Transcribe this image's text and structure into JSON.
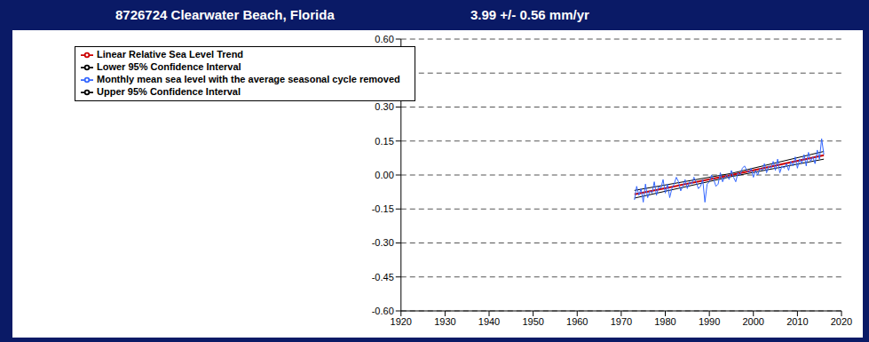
{
  "chart_data": {
    "type": "line",
    "title": "8726724 Clearwater Beach, Florida",
    "subtitle": "3.99 +/- 0.56 mm/yr",
    "xlim": [
      1920,
      2020
    ],
    "xticks": [
      1920,
      1930,
      1940,
      1950,
      1960,
      1970,
      1980,
      1990,
      2000,
      2010,
      2020
    ],
    "ylim": [
      -0.6,
      0.6
    ],
    "yticks": [
      {
        "value": -0.6,
        "label": "-0.60"
      },
      {
        "value": -0.45,
        "label": "-0.45"
      },
      {
        "value": -0.3,
        "label": "-0.30"
      },
      {
        "value": -0.15,
        "label": "-0.15"
      },
      {
        "value": 0,
        "label": "0.00"
      },
      {
        "value": 0.15,
        "label": "0.15"
      },
      {
        "value": 0.3,
        "label": "0.30"
      },
      {
        "value": 0.45,
        "label": "0.45"
      },
      {
        "value": 0.6,
        "label": "0.60"
      }
    ],
    "grid": true,
    "legend": "upper left",
    "series": [
      {
        "name": "Linear Relative Sea Level Trend",
        "color": "#cc0000",
        "line_style": "solid",
        "marker": "none",
        "x": [
          1973,
          1995,
          2016
        ],
        "values": [
          -0.085,
          0.0,
          0.087
        ]
      },
      {
        "name": "Upper 95% Confidence Interval",
        "color": "#000000",
        "line_style": "solid",
        "marker": "none",
        "x": [
          1973,
          1995,
          2016
        ],
        "values": [
          -0.068,
          0.007,
          0.104
        ]
      },
      {
        "name": "Lower 95% Confidence Interval",
        "color": "#000000",
        "line_style": "solid",
        "marker": "none",
        "x": [
          1973,
          1995,
          2016
        ],
        "values": [
          -0.102,
          -0.007,
          0.07
        ]
      },
      {
        "name": "Monthly mean sea level with the average seasonal cycle removed",
        "color": "#3366ff",
        "line_style": "solid",
        "marker": "none",
        "x": [
          1973,
          1973.5,
          1974,
          1974.5,
          1975,
          1975.5,
          1976,
          1976.5,
          1977,
          1977.5,
          1978,
          1978.5,
          1979,
          1979.5,
          1980,
          1980.5,
          1981,
          1981.5,
          1982,
          1982.5,
          1983,
          1983.5,
          1984,
          1984.5,
          1985,
          1985.5,
          1986,
          1986.5,
          1987,
          1987.5,
          1988,
          1988.5,
          1989,
          1989.5,
          1990,
          1990.5,
          1991,
          1991.5,
          1992,
          1992.5,
          1993,
          1993.5,
          1994,
          1994.5,
          1995,
          1995.5,
          1996,
          1996.5,
          1997,
          1997.5,
          1998,
          1998.5,
          1999,
          1999.5,
          2000,
          2000.5,
          2001,
          2001.5,
          2002,
          2002.5,
          2003,
          2003.5,
          2004,
          2004.5,
          2005,
          2005.5,
          2006,
          2006.5,
          2007,
          2007.5,
          2008,
          2008.5,
          2009,
          2009.5,
          2010,
          2010.5,
          2011,
          2011.5,
          2012,
          2012.5,
          2013,
          2013.5,
          2014,
          2014.5,
          2015,
          2015.5,
          2016
        ],
        "values": [
          -0.11,
          -0.05,
          -0.09,
          -0.06,
          -0.12,
          -0.04,
          -0.1,
          -0.07,
          -0.08,
          -0.03,
          -0.09,
          -0.05,
          -0.06,
          -0.02,
          -0.08,
          -0.04,
          -0.1,
          -0.06,
          -0.04,
          -0.01,
          -0.03,
          -0.07,
          -0.05,
          -0.02,
          -0.06,
          -0.03,
          -0.04,
          -0.01,
          -0.03,
          -0.06,
          -0.05,
          -0.02,
          -0.12,
          -0.04,
          -0.03,
          0.0,
          -0.02,
          -0.05,
          -0.04,
          0.01,
          -0.03,
          -0.01,
          0.0,
          -0.02,
          0.02,
          -0.01,
          -0.03,
          0.01,
          0.0,
          0.03,
          0.04,
          0.02,
          0.01,
          0.03,
          -0.01,
          0.02,
          0.0,
          0.03,
          0.02,
          0.05,
          0.01,
          0.04,
          0.03,
          0.06,
          0.02,
          0.07,
          0.01,
          0.04,
          0.03,
          0.05,
          0.02,
          0.06,
          0.04,
          0.08,
          0.03,
          0.07,
          0.05,
          0.09,
          0.04,
          0.1,
          0.06,
          0.08,
          0.05,
          0.11,
          0.07,
          0.16,
          0.09
        ]
      }
    ]
  }
}
